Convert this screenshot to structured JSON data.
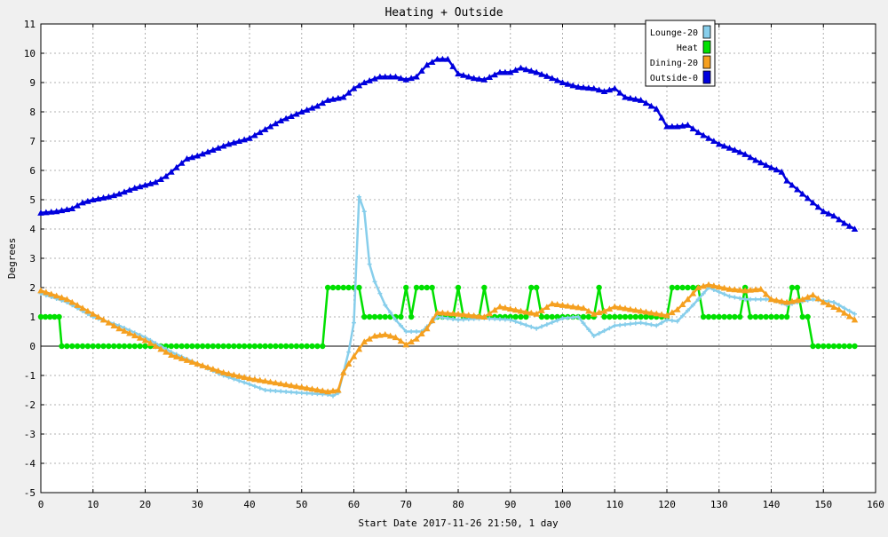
{
  "chart_data": {
    "type": "line",
    "title": "Heating + Outside",
    "xlabel": "Start Date 2017-11-26 21:50, 1 day",
    "ylabel": "Degrees",
    "xlim": [
      0,
      160
    ],
    "ylim": [
      -5,
      11
    ],
    "x_ticks": [
      "0",
      "10",
      "20",
      "30",
      "40",
      "50",
      "60",
      "70",
      "80",
      "90",
      "100",
      "110",
      "120",
      "130",
      "140",
      "150",
      "160"
    ],
    "y_ticks": [
      "-5",
      "-4",
      "-3",
      "-2",
      "-1",
      "0",
      "1",
      "2",
      "3",
      "4",
      "5",
      "6",
      "7",
      "8",
      "9",
      "10",
      "11"
    ],
    "grid": true,
    "legend_position": "top-right",
    "series": [
      {
        "name": "Lounge-20",
        "color": "#87ceeb",
        "marker": "cross",
        "points": [
          [
            0,
            1.8
          ],
          [
            5,
            1.5
          ],
          [
            10,
            1.0
          ],
          [
            15,
            0.7
          ],
          [
            20,
            0.3
          ],
          [
            25,
            -0.2
          ],
          [
            30,
            -0.6
          ],
          [
            35,
            -1.0
          ],
          [
            40,
            -1.3
          ],
          [
            43,
            -1.5
          ],
          [
            50,
            -1.6
          ],
          [
            55,
            -1.65
          ],
          [
            56,
            -1.7
          ],
          [
            57,
            -1.6
          ],
          [
            58,
            -0.9
          ],
          [
            59,
            -0.2
          ],
          [
            60,
            0.8
          ],
          [
            61,
            5.1
          ],
          [
            62,
            4.6
          ],
          [
            63,
            2.8
          ],
          [
            64,
            2.2
          ],
          [
            65,
            1.8
          ],
          [
            66,
            1.4
          ],
          [
            68,
            0.9
          ],
          [
            70,
            0.5
          ],
          [
            73,
            0.5
          ],
          [
            76,
            1.0
          ],
          [
            80,
            0.9
          ],
          [
            85,
            0.95
          ],
          [
            90,
            0.9
          ],
          [
            95,
            0.6
          ],
          [
            100,
            0.95
          ],
          [
            103,
            1.0
          ],
          [
            106,
            0.35
          ],
          [
            110,
            0.7
          ],
          [
            115,
            0.8
          ],
          [
            118,
            0.7
          ],
          [
            120,
            0.9
          ],
          [
            122,
            0.85
          ],
          [
            125,
            1.4
          ],
          [
            128,
            2.0
          ],
          [
            132,
            1.7
          ],
          [
            135,
            1.6
          ],
          [
            140,
            1.6
          ],
          [
            143,
            1.4
          ],
          [
            145,
            1.5
          ],
          [
            148,
            1.6
          ],
          [
            152,
            1.5
          ],
          [
            156,
            1.1
          ]
        ]
      },
      {
        "name": "Heat",
        "color": "#00e000",
        "marker": "circle",
        "points": [
          [
            0,
            1
          ],
          [
            3.5,
            1
          ],
          [
            4,
            0
          ],
          [
            54,
            0
          ],
          [
            55,
            2
          ],
          [
            61,
            2
          ],
          [
            62,
            1
          ],
          [
            69,
            1
          ],
          [
            70,
            2
          ],
          [
            71,
            1
          ],
          [
            72,
            2
          ],
          [
            75,
            2
          ],
          [
            76,
            1
          ],
          [
            79,
            1
          ],
          [
            80,
            2
          ],
          [
            81,
            1
          ],
          [
            84,
            1
          ],
          [
            85,
            2
          ],
          [
            86,
            1
          ],
          [
            93,
            1
          ],
          [
            94,
            2
          ],
          [
            95,
            2
          ],
          [
            96,
            1
          ],
          [
            106,
            1
          ],
          [
            107,
            2
          ],
          [
            108,
            1
          ],
          [
            120,
            1
          ],
          [
            121,
            2
          ],
          [
            126,
            2
          ],
          [
            127,
            1
          ],
          [
            134,
            1
          ],
          [
            135,
            2
          ],
          [
            136,
            1
          ],
          [
            143,
            1
          ],
          [
            144,
            2
          ],
          [
            145,
            2
          ],
          [
            146,
            1
          ],
          [
            147,
            1
          ],
          [
            148,
            0
          ],
          [
            156,
            0
          ]
        ]
      },
      {
        "name": "Dining-20",
        "color": "#f5a020",
        "marker": "triangle",
        "points": [
          [
            0,
            1.9
          ],
          [
            5,
            1.6
          ],
          [
            10,
            1.1
          ],
          [
            15,
            0.6
          ],
          [
            20,
            0.2
          ],
          [
            25,
            -0.3
          ],
          [
            30,
            -0.6
          ],
          [
            35,
            -0.9
          ],
          [
            40,
            -1.1
          ],
          [
            45,
            -1.25
          ],
          [
            50,
            -1.4
          ],
          [
            55,
            -1.55
          ],
          [
            57,
            -1.5
          ],
          [
            58,
            -0.9
          ],
          [
            59,
            -0.6
          ],
          [
            60,
            -0.35
          ],
          [
            61,
            -0.1
          ],
          [
            62,
            0.15
          ],
          [
            64,
            0.35
          ],
          [
            66,
            0.4
          ],
          [
            68,
            0.3
          ],
          [
            70,
            0.05
          ],
          [
            72,
            0.25
          ],
          [
            74,
            0.6
          ],
          [
            76,
            1.15
          ],
          [
            80,
            1.1
          ],
          [
            85,
            1.0
          ],
          [
            88,
            1.35
          ],
          [
            92,
            1.2
          ],
          [
            95,
            1.1
          ],
          [
            98,
            1.45
          ],
          [
            100,
            1.4
          ],
          [
            104,
            1.3
          ],
          [
            106,
            1.1
          ],
          [
            108,
            1.2
          ],
          [
            110,
            1.35
          ],
          [
            115,
            1.2
          ],
          [
            120,
            1.05
          ],
          [
            122,
            1.25
          ],
          [
            124,
            1.6
          ],
          [
            126,
            2.0
          ],
          [
            128,
            2.1
          ],
          [
            132,
            1.95
          ],
          [
            135,
            1.9
          ],
          [
            138,
            1.95
          ],
          [
            140,
            1.6
          ],
          [
            143,
            1.5
          ],
          [
            146,
            1.6
          ],
          [
            148,
            1.75
          ],
          [
            150,
            1.5
          ],
          [
            153,
            1.25
          ],
          [
            156,
            0.9
          ]
        ]
      },
      {
        "name": "Outside-0",
        "color": "#0000dd",
        "marker": "triangle",
        "points": [
          [
            0,
            4.55
          ],
          [
            3,
            4.6
          ],
          [
            6,
            4.7
          ],
          [
            8,
            4.9
          ],
          [
            10,
            5.0
          ],
          [
            13,
            5.1
          ],
          [
            15,
            5.2
          ],
          [
            18,
            5.4
          ],
          [
            20,
            5.5
          ],
          [
            22,
            5.6
          ],
          [
            24,
            5.8
          ],
          [
            26,
            6.1
          ],
          [
            28,
            6.4
          ],
          [
            30,
            6.5
          ],
          [
            33,
            6.7
          ],
          [
            36,
            6.9
          ],
          [
            40,
            7.1
          ],
          [
            43,
            7.4
          ],
          [
            46,
            7.7
          ],
          [
            50,
            8.0
          ],
          [
            53,
            8.2
          ],
          [
            55,
            8.4
          ],
          [
            58,
            8.5
          ],
          [
            60,
            8.8
          ],
          [
            62,
            9.0
          ],
          [
            65,
            9.2
          ],
          [
            68,
            9.2
          ],
          [
            70,
            9.1
          ],
          [
            72,
            9.2
          ],
          [
            74,
            9.6
          ],
          [
            76,
            9.8
          ],
          [
            78,
            9.8
          ],
          [
            80,
            9.3
          ],
          [
            83,
            9.15
          ],
          [
            85,
            9.1
          ],
          [
            88,
            9.35
          ],
          [
            90,
            9.35
          ],
          [
            92,
            9.5
          ],
          [
            95,
            9.35
          ],
          [
            98,
            9.15
          ],
          [
            100,
            9.0
          ],
          [
            103,
            8.85
          ],
          [
            106,
            8.8
          ],
          [
            108,
            8.7
          ],
          [
            110,
            8.8
          ],
          [
            112,
            8.5
          ],
          [
            115,
            8.4
          ],
          [
            118,
            8.1
          ],
          [
            120,
            7.5
          ],
          [
            122,
            7.5
          ],
          [
            124,
            7.55
          ],
          [
            126,
            7.3
          ],
          [
            128,
            7.1
          ],
          [
            130,
            6.9
          ],
          [
            133,
            6.7
          ],
          [
            135,
            6.55
          ],
          [
            137,
            6.35
          ],
          [
            140,
            6.1
          ],
          [
            142,
            5.95
          ],
          [
            143,
            5.65
          ],
          [
            145,
            5.35
          ],
          [
            148,
            4.9
          ],
          [
            150,
            4.6
          ],
          [
            152,
            4.45
          ],
          [
            154,
            4.2
          ],
          [
            156,
            4.0
          ]
        ]
      }
    ]
  }
}
